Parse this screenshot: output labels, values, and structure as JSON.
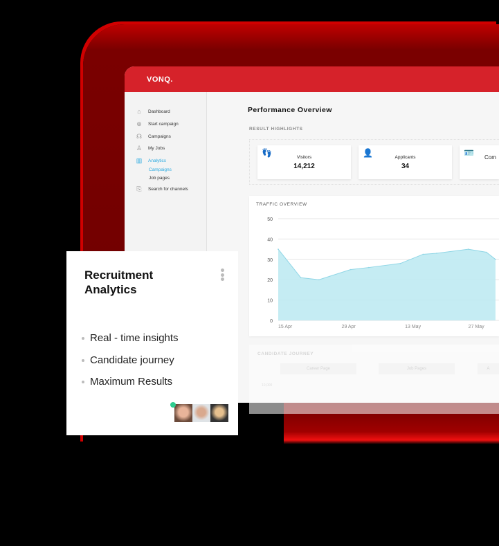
{
  "app": {
    "logo": "VONQ."
  },
  "sidebar": {
    "items": [
      {
        "label": "Dashboard",
        "icon": "home-icon"
      },
      {
        "label": "Start campaign",
        "icon": "plus-circle-icon"
      },
      {
        "label": "Campaigns",
        "icon": "megaphone-icon"
      },
      {
        "label": "My Jobs",
        "icon": "person-icon"
      },
      {
        "label": "Analytics",
        "icon": "chart-icon",
        "active": true
      },
      {
        "label": "Campaigns",
        "sub": true,
        "active": true
      },
      {
        "label": "Job pages",
        "sub": true
      },
      {
        "label": "Search for channels",
        "icon": "search-channel-icon"
      }
    ],
    "accent": "#29a9e0"
  },
  "main": {
    "title": "Performance Overview",
    "highlights_label": "RESULT HIGHLIGHTS",
    "cards": [
      {
        "label": "Visitors",
        "value": "14,212",
        "icon": "footsteps-icon"
      },
      {
        "label": "Applicants",
        "value": "34",
        "icon": "applicant-icon"
      },
      {
        "label": "Com",
        "value": "",
        "icon": "id-card-icon"
      }
    ],
    "traffic_title": "TRAFFIC OVERVIEW",
    "journey": {
      "title": "CANDIDATE JOURNEY",
      "columns": [
        "Career Page",
        "Job Pages",
        "A"
      ],
      "y_tick": "10,000"
    }
  },
  "chart_data": {
    "type": "area",
    "title": "TRAFFIC OVERVIEW",
    "x": [
      "15 Apr",
      "20 Apr",
      "24 Apr",
      "1 May",
      "5 May",
      "12 May",
      "17 May",
      "20 May",
      "27 May",
      "31 May",
      "2 Jun"
    ],
    "values": [
      35,
      21,
      20,
      25,
      26,
      28,
      32.5,
      33,
      35,
      33.5,
      30
    ],
    "xticks": [
      "15 Apr",
      "29 Apr",
      "13 May",
      "27 May"
    ],
    "yticks": [
      0,
      10,
      20,
      30,
      40,
      50
    ],
    "ylim": [
      0,
      50
    ],
    "grid": true,
    "color": "#bfeaf2"
  },
  "promo": {
    "title": "Recruitment Analytics",
    "bullets": [
      "Real - time insights",
      "Candidate journey",
      "Maximum Results"
    ]
  },
  "colors": {
    "brand": "#d6222a",
    "online": "#2ecc8f"
  }
}
